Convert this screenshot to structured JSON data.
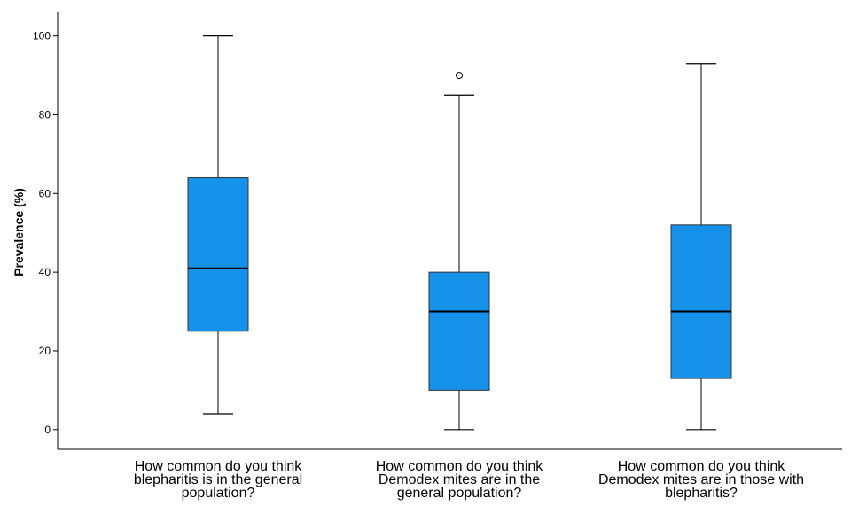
{
  "chart_data": {
    "type": "boxplot",
    "title": "",
    "xlabel": "",
    "ylabel": "Prevalence (%)",
    "ylim": [
      -5,
      106
    ],
    "yticks": [
      0,
      20,
      40,
      60,
      80,
      100
    ],
    "grid": false,
    "box_color": "#1591EA",
    "categories": [
      [
        "How common do you think",
        "blepharitis is in the general",
        "population?"
      ],
      [
        "How common do you think",
        "Demodex mites are in the",
        "general population?"
      ],
      [
        "How common do you think",
        "Demodex mites are in those with",
        "blepharitis?"
      ]
    ],
    "boxes": [
      {
        "whisker_low": 4,
        "q1": 25,
        "median": 41,
        "q3": 64,
        "whisker_high": 100,
        "outliers": []
      },
      {
        "whisker_low": 0,
        "q1": 10,
        "median": 30,
        "q3": 40,
        "whisker_high": 85,
        "outliers": [
          90
        ]
      },
      {
        "whisker_low": 0,
        "q1": 13,
        "median": 30,
        "q3": 52,
        "whisker_high": 93,
        "outliers": []
      }
    ]
  }
}
